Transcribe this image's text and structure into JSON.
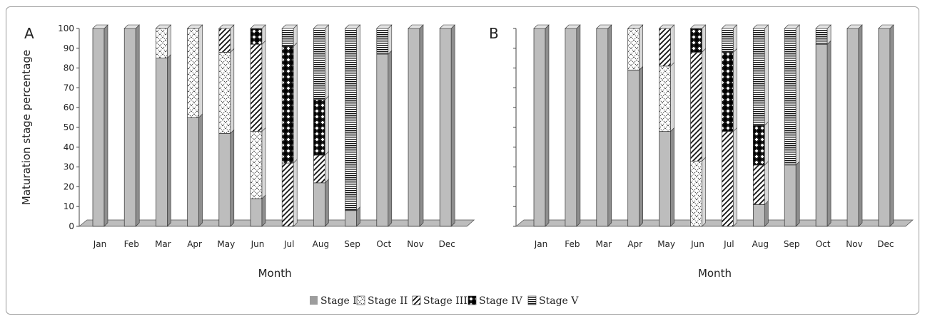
{
  "legend": [
    {
      "key": "s1",
      "label": "Stage I"
    },
    {
      "key": "s2",
      "label": "Stage II"
    },
    {
      "key": "s3",
      "label": "Stage III"
    },
    {
      "key": "s4",
      "label": "Stage IV"
    },
    {
      "key": "s5",
      "label": "Stage V"
    }
  ],
  "chart_data": [
    {
      "type": "bar",
      "stacked": true,
      "panel": "A",
      "categories": [
        "Jan",
        "Feb",
        "Mar",
        "Apr",
        "May",
        "Jun",
        "Jul",
        "Aug",
        "Sep",
        "Oct",
        "Nov",
        "Dec"
      ],
      "series": [
        {
          "name": "Stage I",
          "values": [
            100,
            100,
            85,
            55,
            47,
            14,
            0,
            22,
            8,
            87,
            100,
            100
          ]
        },
        {
          "name": "Stage II",
          "values": [
            0,
            0,
            15,
            45,
            41,
            34,
            0,
            0,
            0,
            0,
            0,
            0
          ]
        },
        {
          "name": "Stage III",
          "values": [
            0,
            0,
            0,
            0,
            12,
            44,
            32,
            14,
            0,
            0,
            0,
            0
          ]
        },
        {
          "name": "Stage IV",
          "values": [
            0,
            0,
            0,
            0,
            0,
            8,
            59,
            28,
            0,
            0,
            0,
            0
          ]
        },
        {
          "name": "Stage V",
          "values": [
            0,
            0,
            0,
            0,
            0,
            0,
            9,
            36,
            92,
            13,
            0,
            0
          ]
        }
      ],
      "xlabel": "Month",
      "ylabel": "Maturation stage percentage",
      "ylim": [
        0,
        100
      ],
      "yticks": [
        0,
        10,
        20,
        30,
        40,
        50,
        60,
        70,
        80,
        90,
        100
      ],
      "show_y_tick_labels": true
    },
    {
      "type": "bar",
      "stacked": true,
      "panel": "B",
      "categories": [
        "Jan",
        "Feb",
        "Mar",
        "Apr",
        "May",
        "Jun",
        "Jul",
        "Aug",
        "Sep",
        "Oct",
        "Nov",
        "Dec"
      ],
      "series": [
        {
          "name": "Stage I",
          "values": [
            100,
            100,
            100,
            79,
            48,
            0,
            0,
            11,
            31,
            92,
            100,
            100
          ]
        },
        {
          "name": "Stage II",
          "values": [
            0,
            0,
            0,
            21,
            33,
            33,
            0,
            0,
            0,
            0,
            0,
            0
          ]
        },
        {
          "name": "Stage III",
          "values": [
            0,
            0,
            0,
            0,
            19,
            55,
            48,
            20,
            0,
            0,
            0,
            0
          ]
        },
        {
          "name": "Stage IV",
          "values": [
            0,
            0,
            0,
            0,
            0,
            12,
            40,
            20,
            0,
            0,
            0,
            0
          ]
        },
        {
          "name": "Stage V",
          "values": [
            0,
            0,
            0,
            0,
            0,
            0,
            12,
            49,
            69,
            8,
            0,
            0
          ]
        }
      ],
      "xlabel": "Month",
      "ylabel": "",
      "ylim": [
        0,
        100
      ],
      "yticks": [
        0,
        10,
        20,
        30,
        40,
        50,
        60,
        70,
        80,
        90,
        100
      ],
      "show_y_tick_labels": false
    }
  ]
}
